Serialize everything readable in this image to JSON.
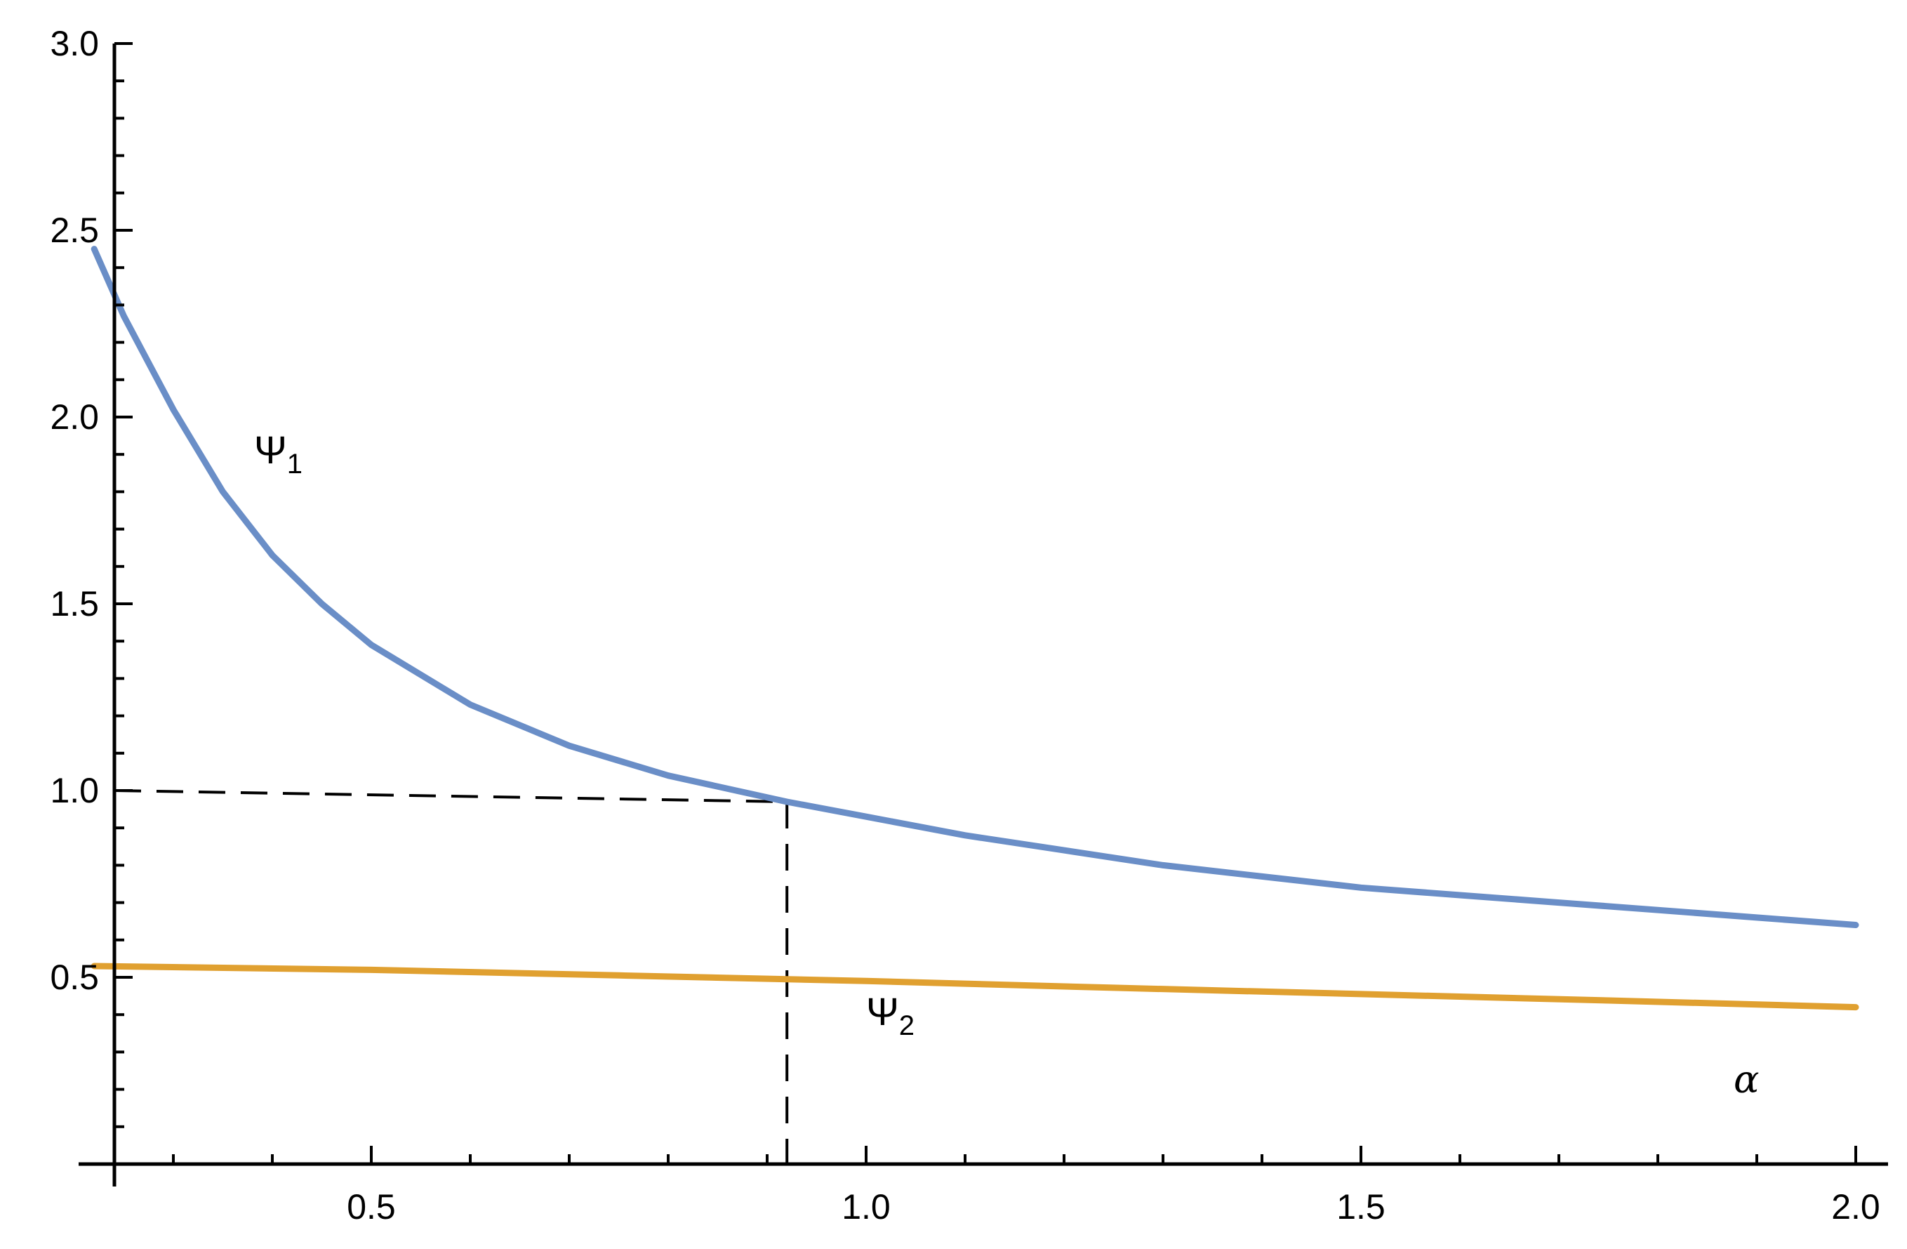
{
  "chart_data": {
    "type": "line",
    "xlabel": "α",
    "ylabel": "",
    "xlim": [
      0.22,
      2.05
    ],
    "ylim": [
      0,
      3.0
    ],
    "x_ticks": [
      "0.5",
      "1.0",
      "1.5",
      "2.0"
    ],
    "y_ticks": [
      "0.5",
      "1.0",
      "1.5",
      "2.0",
      "2.5",
      "3.0"
    ],
    "x_tick_values": [
      0.5,
      1.0,
      1.5,
      2.0
    ],
    "y_tick_values": [
      0.5,
      1.0,
      1.5,
      2.0,
      2.5,
      3.0
    ],
    "grid": false,
    "legend": "none",
    "series": [
      {
        "name": "Ψ",
        "subscript": "1",
        "color": "#6a8ec7",
        "x": [
          0.22,
          0.25,
          0.3,
          0.35,
          0.4,
          0.45,
          0.5,
          0.6,
          0.7,
          0.8,
          0.92,
          1.0,
          1.1,
          1.2,
          1.3,
          1.4,
          1.5,
          1.6,
          1.7,
          1.8,
          1.9,
          2.0
        ],
        "y": [
          2.45,
          2.27,
          2.02,
          1.8,
          1.63,
          1.5,
          1.39,
          1.23,
          1.12,
          1.04,
          0.97,
          0.93,
          0.88,
          0.84,
          0.8,
          0.77,
          0.74,
          0.72,
          0.7,
          0.68,
          0.66,
          0.64
        ]
      },
      {
        "name": "Ψ",
        "subscript": "2",
        "color": "#e0a030",
        "x": [
          0.22,
          0.5,
          0.75,
          1.0,
          1.25,
          1.5,
          1.75,
          2.0
        ],
        "y": [
          0.53,
          0.52,
          0.505,
          0.49,
          0.472,
          0.455,
          0.438,
          0.42
        ]
      }
    ],
    "reference_lines": {
      "dash_y_start": 1.0,
      "dash_y_end": 0.97,
      "dash_x": 0.92
    }
  }
}
